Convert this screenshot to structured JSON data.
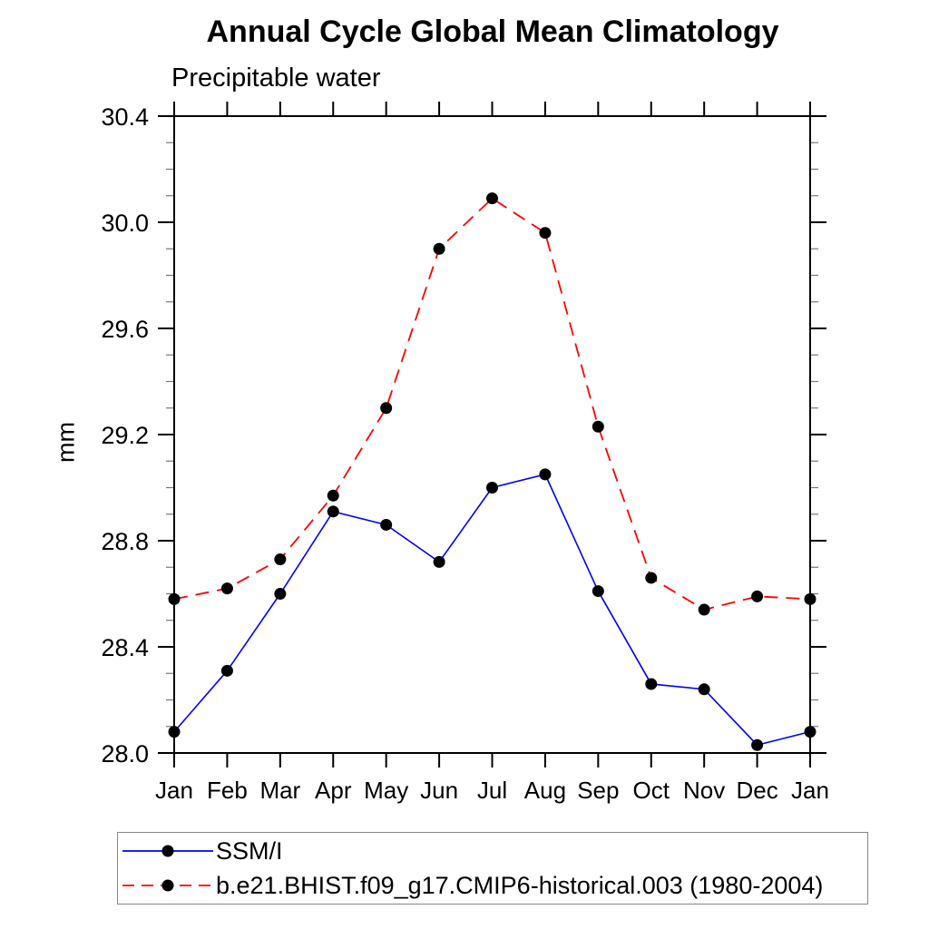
{
  "chart_data": {
    "type": "line",
    "title": "Annual Cycle Global Mean Climatology",
    "subtitle": "Precipitable water",
    "xlabel": "",
    "ylabel": "mm",
    "categories": [
      "Jan",
      "Feb",
      "Mar",
      "Apr",
      "May",
      "Jun",
      "Jul",
      "Aug",
      "Sep",
      "Oct",
      "Nov",
      "Dec",
      "Jan"
    ],
    "ylim": [
      28.0,
      30.4
    ],
    "y_major_step": 0.4,
    "y_minor_step": 0.1,
    "y_tick_labels": [
      "28.0",
      "28.4",
      "28.8",
      "29.2",
      "29.6",
      "30.0",
      "30.4"
    ],
    "grid": false,
    "legend_position": "bottom-left-box",
    "series": [
      {
        "name": "SSM/I",
        "color": "#0000ff",
        "line_style": "solid",
        "marker": "filled-circle",
        "marker_color": "#000000",
        "values": [
          28.08,
          28.31,
          28.6,
          28.91,
          28.86,
          28.72,
          29.0,
          29.05,
          28.61,
          28.26,
          28.24,
          28.03,
          28.08
        ]
      },
      {
        "name": "b.e21.BHIST.f09_g17.CMIP6-historical.003 (1980-2004)",
        "color": "#ff0000",
        "line_style": "dashed",
        "marker": "filled-circle",
        "marker_color": "#000000",
        "values": [
          28.58,
          28.62,
          28.73,
          28.97,
          29.3,
          29.9,
          30.09,
          29.96,
          29.23,
          28.66,
          28.54,
          28.59,
          28.58
        ]
      }
    ]
  }
}
